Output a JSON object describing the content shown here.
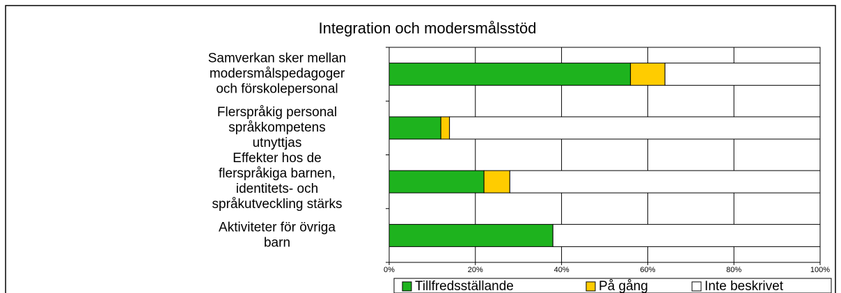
{
  "chart_data": {
    "type": "bar",
    "orientation": "horizontal",
    "stacked": true,
    "title": "Integration och modersmålsstöd",
    "categories": [
      [
        "Samverkan sker mellan",
        "modersmålspedagoger",
        "och förskolepersonal"
      ],
      [
        "Flerspråkig personal",
        "språkkompetens",
        "utnyttjas"
      ],
      [
        "Effekter hos de",
        "flerspråkiga barnen,",
        "identitets- och",
        "språkutveckling stärks"
      ],
      [
        "Aktiviteter för övriga",
        "barn"
      ]
    ],
    "series": [
      {
        "name": "Tillfredsställande",
        "color": "#1eb31e",
        "values": [
          56,
          12,
          22,
          38
        ]
      },
      {
        "name": "På gång",
        "color": "#ffcc00",
        "values": [
          8,
          2,
          6,
          0
        ]
      },
      {
        "name": "Inte beskrivet",
        "color": "#ffffff",
        "values": [
          36,
          86,
          72,
          62
        ]
      }
    ],
    "xlim": [
      0,
      100
    ],
    "xticks": [
      {
        "value": 0,
        "label": "0%"
      },
      {
        "value": 20,
        "label": "20%"
      },
      {
        "value": 40,
        "label": "40%"
      },
      {
        "value": 60,
        "label": "60%"
      },
      {
        "value": 80,
        "label": "80%"
      },
      {
        "value": 100,
        "label": "100%"
      }
    ],
    "grid": true,
    "legend": "bottom"
  }
}
